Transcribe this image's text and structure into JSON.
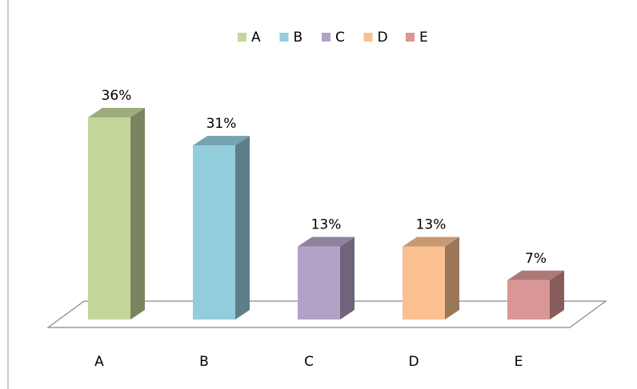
{
  "chart_data": {
    "type": "bar3d",
    "categories": [
      "A",
      "B",
      "C",
      "D",
      "E"
    ],
    "values": [
      36,
      31,
      13,
      13,
      7
    ],
    "value_labels": [
      "36%",
      "31%",
      "13%",
      "13%",
      "7%"
    ],
    "colors": [
      "#c4d79b",
      "#92cddc",
      "#b3a2c7",
      "#fac090",
      "#da9694"
    ],
    "legend": "top"
  }
}
